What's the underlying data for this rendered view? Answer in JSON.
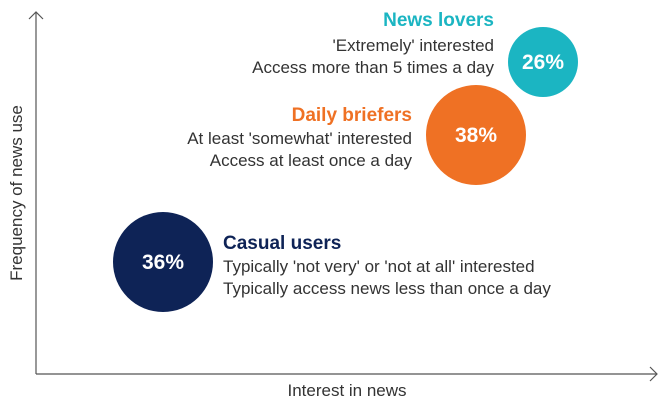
{
  "chart_data": {
    "type": "scatter",
    "xlabel": "Interest in news",
    "ylabel": "Frequency of news use",
    "series": [
      {
        "name": "News lovers",
        "value": 26,
        "label": "26%",
        "lines": [
          "'Extremely' interested",
          "Access more than 5 times a day"
        ],
        "color": "#1BB5C2"
      },
      {
        "name": "Daily briefers",
        "value": 38,
        "label": "38%",
        "lines": [
          "At least 'somewhat' interested",
          "Access at least once a day"
        ],
        "color": "#EF7124"
      },
      {
        "name": "Casual users",
        "value": 36,
        "label": "36%",
        "lines": [
          "Typically 'not very' or 'not at all' interested",
          "Typically access news less than once a day"
        ],
        "color": "#0E2356"
      }
    ]
  }
}
